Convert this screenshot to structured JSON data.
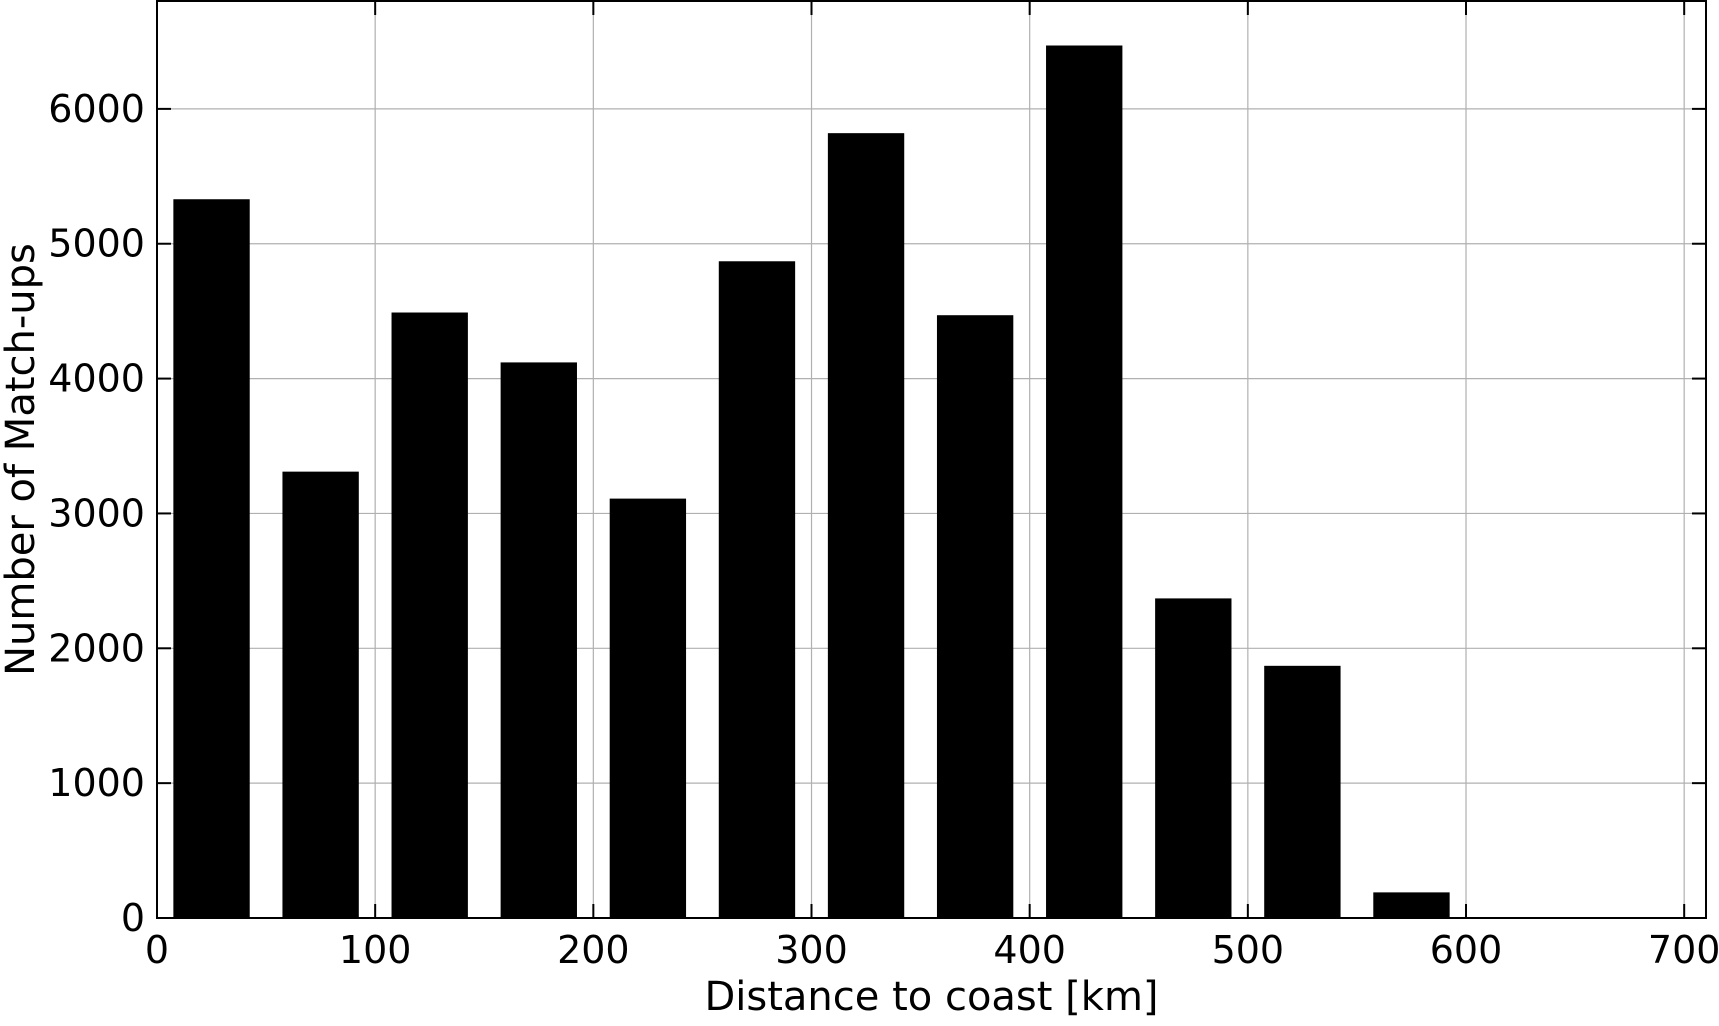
{
  "chart_data": {
    "type": "bar",
    "title": "",
    "xlabel": "Distance to coast [km]",
    "ylabel": "Number of Match-ups",
    "xlim": [
      0,
      710
    ],
    "ylim": [
      0,
      6800
    ],
    "x_ticks": [
      0,
      100,
      200,
      300,
      400,
      500,
      600,
      700
    ],
    "y_ticks": [
      0,
      1000,
      2000,
      3000,
      4000,
      5000,
      6000
    ],
    "grid": true,
    "bar_color": "#000000",
    "bars": [
      {
        "x_start": 7.5,
        "x_end": 42.5,
        "value": 5330
      },
      {
        "x_start": 57.5,
        "x_end": 92.5,
        "value": 3310
      },
      {
        "x_start": 107.5,
        "x_end": 142.5,
        "value": 4490
      },
      {
        "x_start": 157.5,
        "x_end": 192.5,
        "value": 4120
      },
      {
        "x_start": 207.5,
        "x_end": 242.5,
        "value": 3110
      },
      {
        "x_start": 257.5,
        "x_end": 292.5,
        "value": 4870
      },
      {
        "x_start": 307.5,
        "x_end": 342.5,
        "value": 5820
      },
      {
        "x_start": 357.5,
        "x_end": 392.5,
        "value": 4470
      },
      {
        "x_start": 407.5,
        "x_end": 442.5,
        "value": 6470
      },
      {
        "x_start": 457.5,
        "x_end": 492.5,
        "value": 2370
      },
      {
        "x_start": 507.5,
        "x_end": 542.5,
        "value": 1870
      },
      {
        "x_start": 557.5,
        "x_end": 592.5,
        "value": 190
      }
    ]
  }
}
